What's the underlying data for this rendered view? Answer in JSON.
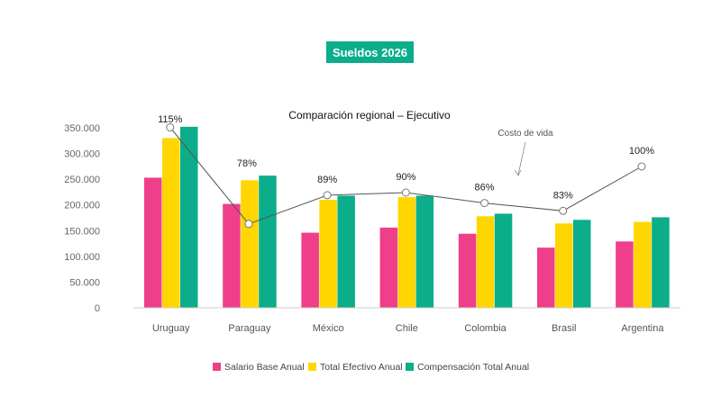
{
  "badge": "Sueldos 2026",
  "chart_data": {
    "type": "bar",
    "title": "Comparación regional – Ejecutivo",
    "categories": [
      "Uruguay",
      "Paraguay",
      "México",
      "Chile",
      "Colombia",
      "Brasil",
      "Argentina"
    ],
    "series": [
      {
        "name": "Salario Base Anual",
        "color": "#ef3e8a",
        "values": [
          253000,
          202000,
          146000,
          156000,
          144000,
          117000,
          129000
        ]
      },
      {
        "name": "Total Efectivo Anual",
        "color": "#ffd600",
        "values": [
          330000,
          248000,
          210000,
          215000,
          178000,
          164000,
          167000
        ]
      },
      {
        "name": "Compensación Total Anual",
        "color": "#0bad8a",
        "values": [
          352000,
          257000,
          218000,
          218000,
          183000,
          171000,
          176000
        ]
      }
    ],
    "ylim": [
      0,
      350000
    ],
    "yticks": [
      0,
      50000,
      100000,
      150000,
      200000,
      250000,
      300000,
      350000
    ],
    "ytick_labels": [
      "0",
      "50.000",
      "100.000",
      "150.000",
      "200.000",
      "250.000",
      "300.000",
      "350.000"
    ],
    "line": {
      "name": "Costo de vida",
      "values": [
        115,
        78,
        89,
        90,
        86,
        83,
        100
      ],
      "labels": [
        "115%",
        "78%",
        "89%",
        "90%",
        "86%",
        "83%",
        "100%"
      ]
    },
    "annotation": "Costo de vida",
    "legend_position": "bottom"
  }
}
